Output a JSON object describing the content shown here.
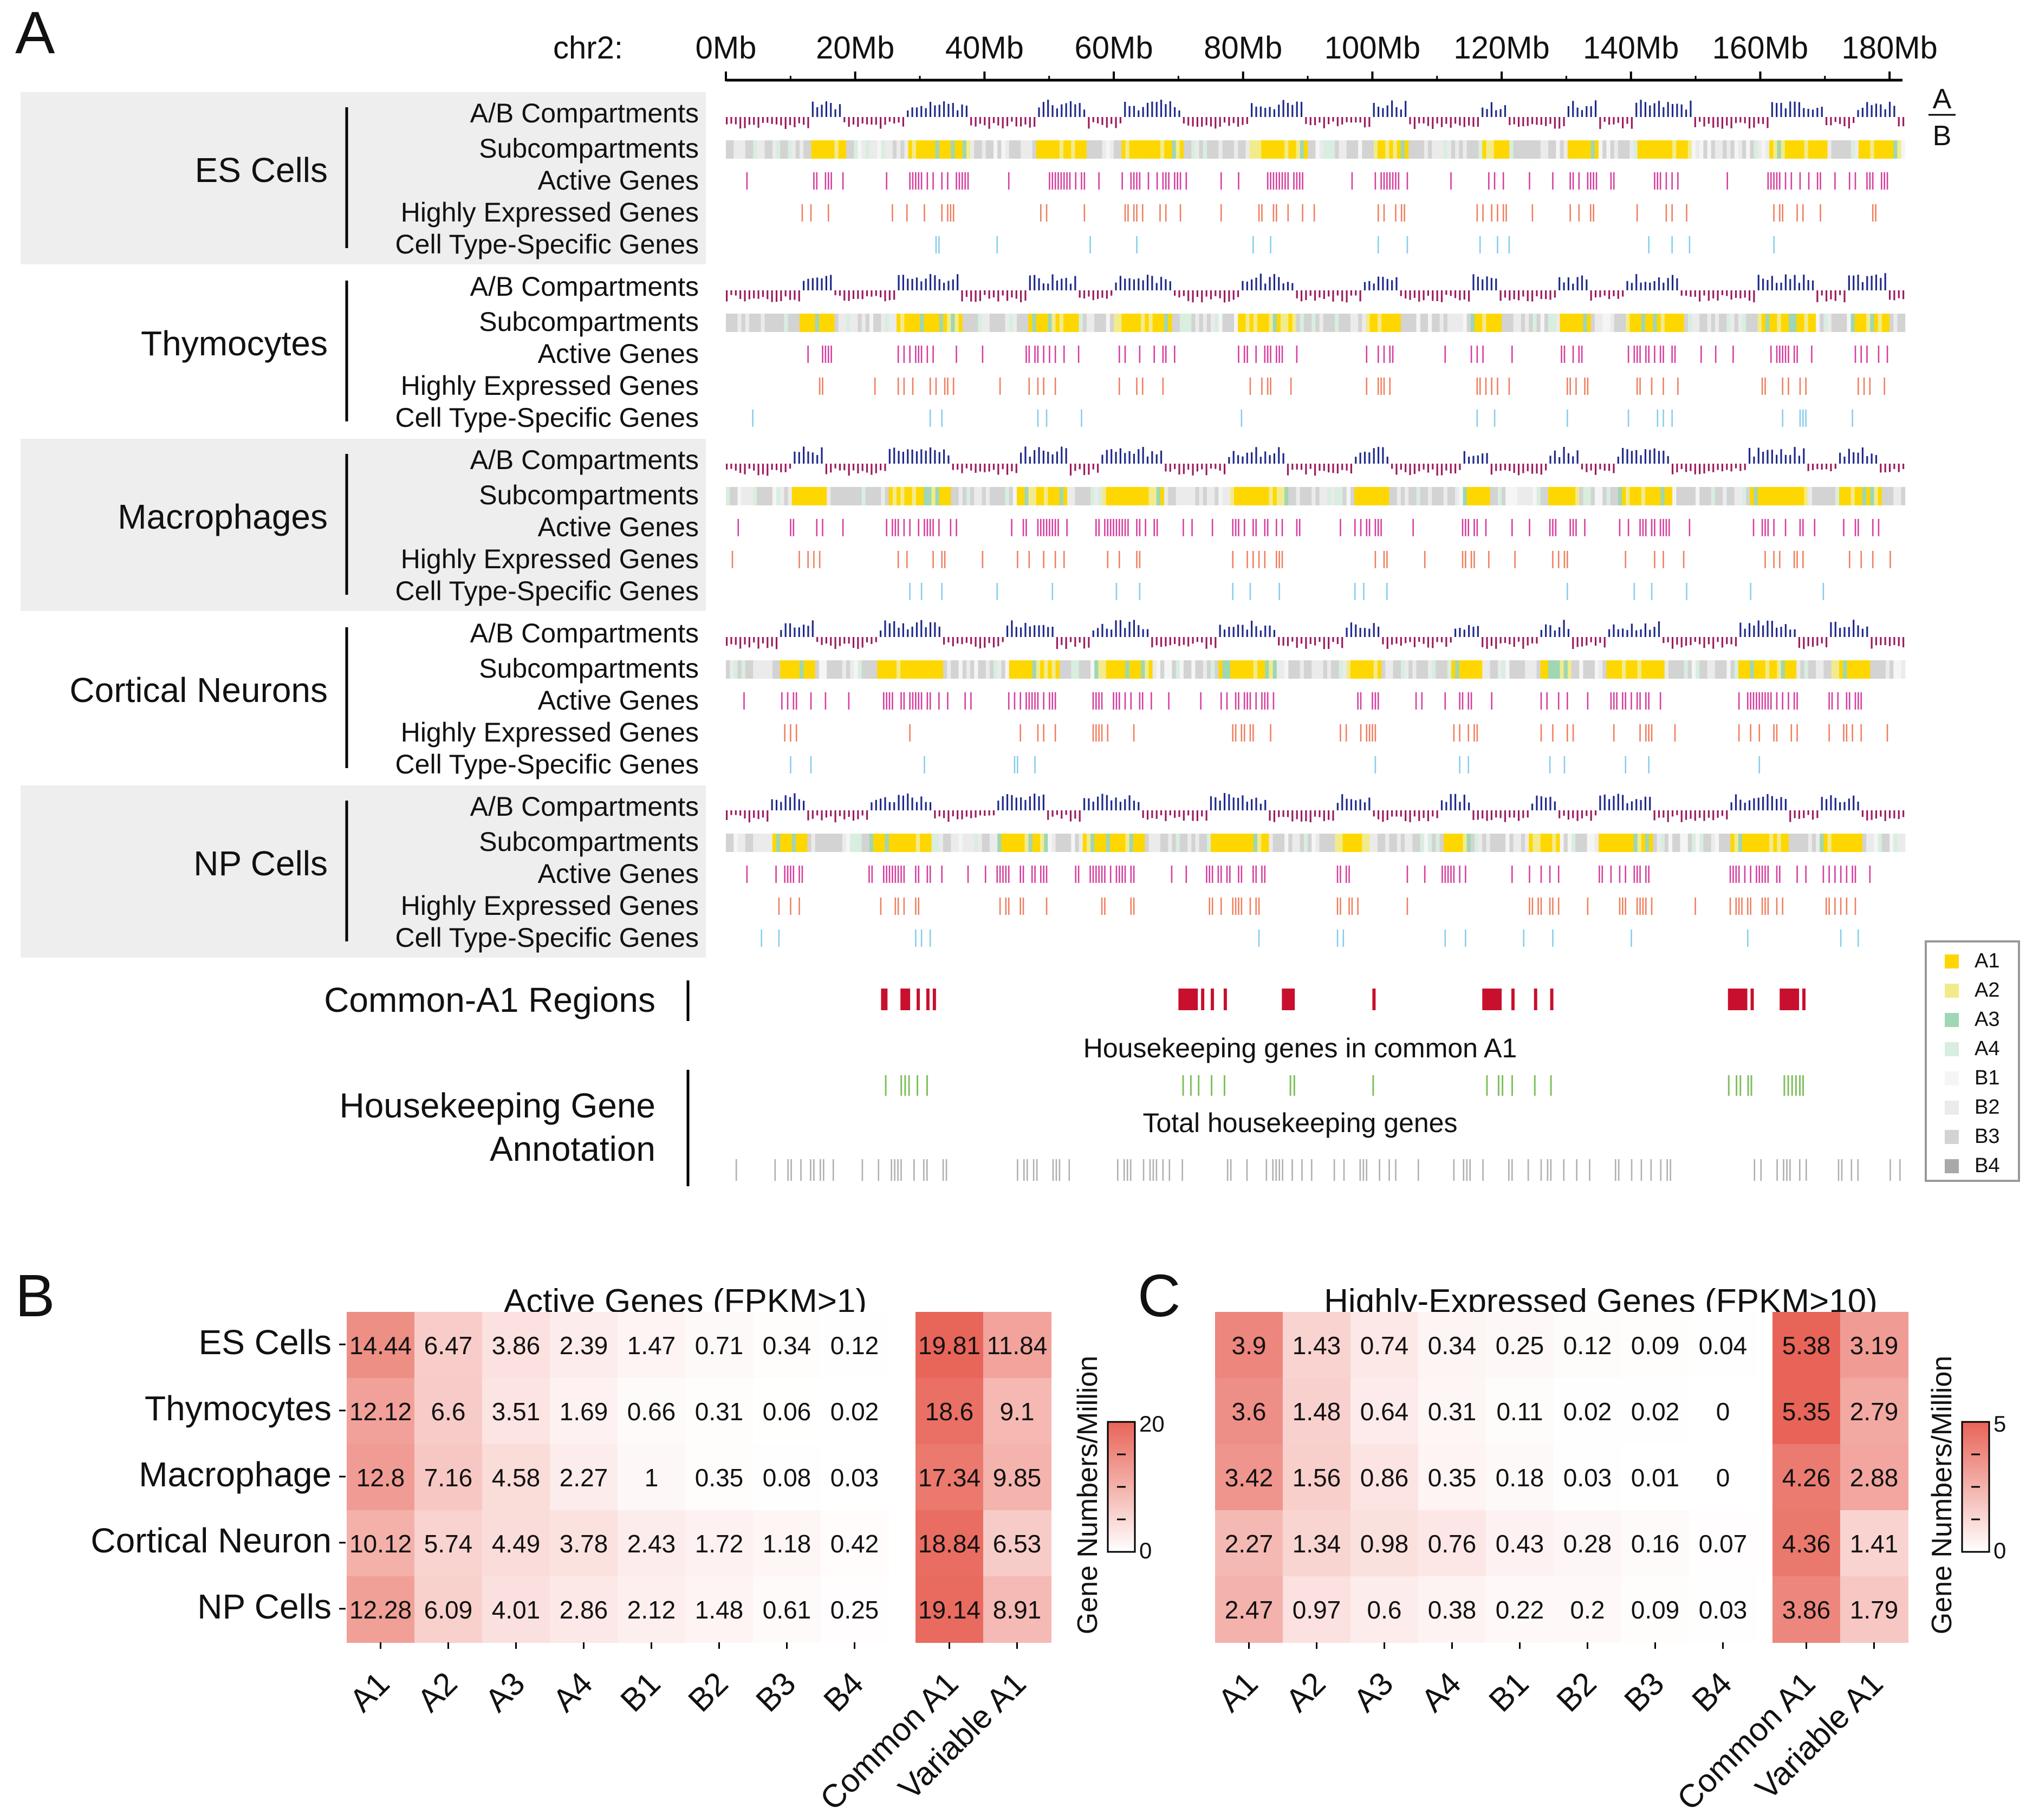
{
  "panels": {
    "a": "A",
    "b": "B",
    "c": "C"
  },
  "genome": {
    "chrom_label": "chr2:",
    "axis_ticks": [
      "0Mb",
      "20Mb",
      "40Mb",
      "60Mb",
      "80Mb",
      "100Mb",
      "120Mb",
      "140Mb",
      "160Mb",
      "180Mb"
    ],
    "tick_values_mb": [
      0,
      20,
      40,
      60,
      80,
      100,
      120,
      140,
      160,
      180
    ],
    "chrom_length_mb": 182,
    "ab_key": {
      "top": "A",
      "bottom": "B"
    },
    "track_labels": [
      "A/B Compartments",
      "Subcompartments",
      "Active Genes",
      "Highly Expressed Genes",
      "Cell Type-Specific Genes"
    ],
    "cell_types": [
      "ES Cells",
      "Thymocytes",
      "Macrophages",
      "Cortical Neurons",
      "NP Cells"
    ],
    "common_a1_label": "Common-A1 Regions",
    "housekeeping_label_line1": "Housekeeping Gene",
    "housekeeping_label_line2": "Annotation",
    "hk_in_common_label": "Housekeeping genes in common A1",
    "hk_total_label": "Total housekeeping genes",
    "common_a1_regions_mb": [
      [
        24,
        25
      ],
      [
        27,
        28.5
      ],
      [
        29.5,
        30
      ],
      [
        31,
        31.5
      ],
      [
        32,
        32.5
      ],
      [
        70,
        73
      ],
      [
        73.5,
        74
      ],
      [
        75,
        75.5
      ],
      [
        77,
        77.5
      ],
      [
        86,
        88
      ],
      [
        100,
        100.5
      ],
      [
        117,
        120
      ],
      [
        121.5,
        122
      ],
      [
        125,
        125.5
      ],
      [
        127.5,
        128
      ],
      [
        155,
        158
      ],
      [
        158.5,
        159
      ],
      [
        163,
        166
      ],
      [
        166.5,
        167
      ]
    ],
    "legend": [
      {
        "label": "A1",
        "color": "#FFD700"
      },
      {
        "label": "A2",
        "color": "#F2EB8C"
      },
      {
        "label": "A3",
        "color": "#9FD6B4"
      },
      {
        "label": "A4",
        "color": "#D8EEDF"
      },
      {
        "label": "B1",
        "color": "#F5F5F5"
      },
      {
        "label": "B2",
        "color": "#EBEBEB"
      },
      {
        "label": "B3",
        "color": "#D3D3D3"
      },
      {
        "label": "B4",
        "color": "#A9A9A9"
      }
    ],
    "colors": {
      "a_compartment": "#1F2A8A",
      "b_compartment": "#9B1C5E",
      "active_genes": "#D6409F",
      "highly_expressed": "#F08060",
      "cell_specific": "#87CEEB",
      "common_a1": "#C8102E",
      "hk_common": "#7FBF5F",
      "hk_total": "#B0B0B0",
      "panel_bg": "#EEEEEE"
    }
  },
  "chart_data": [
    {
      "type": "heatmap",
      "title": "Active  Genes (FPKM>1)",
      "rows": [
        "ES Cells",
        "Thymocytes",
        "Macrophage",
        "Cortical Neuron",
        "NP Cells"
      ],
      "columns": [
        "A1",
        "A2",
        "A3",
        "A4",
        "B1",
        "B2",
        "B3",
        "B4"
      ],
      "values": [
        [
          14.44,
          6.47,
          3.86,
          2.39,
          1.47,
          0.71,
          0.34,
          0.12
        ],
        [
          12.12,
          6.6,
          3.51,
          1.69,
          0.66,
          0.31,
          0.06,
          0.02
        ],
        [
          12.8,
          7.16,
          4.58,
          2.27,
          1.0,
          0.35,
          0.08,
          0.03
        ],
        [
          10.12,
          5.74,
          4.49,
          3.78,
          2.43,
          1.72,
          1.18,
          0.42
        ],
        [
          12.28,
          6.09,
          4.01,
          2.86,
          2.12,
          1.48,
          0.61,
          0.25
        ]
      ],
      "extra_columns": [
        "Common A1",
        "Variable A1"
      ],
      "extra_values": [
        [
          19.81,
          11.84
        ],
        [
          18.6,
          9.1
        ],
        [
          17.34,
          9.85
        ],
        [
          18.84,
          6.53
        ],
        [
          19.14,
          8.91
        ]
      ],
      "colorbar": {
        "label": "Gene Numbers/Million",
        "min": 0,
        "max": 20,
        "min_label": "0",
        "max_label": "20"
      }
    },
    {
      "type": "heatmap",
      "title": "Highly-Expressed Genes (FPKM>10)",
      "rows": [
        "ES Cells",
        "Thymocytes",
        "Macrophage",
        "Cortical Neuron",
        "NP Cells"
      ],
      "columns": [
        "A1",
        "A2",
        "A3",
        "A4",
        "B1",
        "B2",
        "B3",
        "B4"
      ],
      "values": [
        [
          3.9,
          1.43,
          0.74,
          0.34,
          0.25,
          0.12,
          0.09,
          0.04
        ],
        [
          3.6,
          1.48,
          0.64,
          0.31,
          0.11,
          0.02,
          0.02,
          0.0
        ],
        [
          3.42,
          1.56,
          0.86,
          0.35,
          0.18,
          0.03,
          0.01,
          0.0
        ],
        [
          2.27,
          1.34,
          0.98,
          0.76,
          0.43,
          0.28,
          0.16,
          0.07
        ],
        [
          2.47,
          0.97,
          0.6,
          0.38,
          0.22,
          0.2,
          0.09,
          0.03
        ]
      ],
      "extra_columns": [
        "Common A1",
        "Variable A1"
      ],
      "extra_values": [
        [
          5.38,
          3.19
        ],
        [
          5.35,
          2.79
        ],
        [
          4.26,
          2.88
        ],
        [
          4.36,
          1.41
        ],
        [
          3.86,
          1.79
        ]
      ],
      "colorbar": {
        "label": "Gene Numbers/Million",
        "min": 0,
        "max": 5,
        "min_label": "0",
        "max_label": "5"
      }
    }
  ]
}
